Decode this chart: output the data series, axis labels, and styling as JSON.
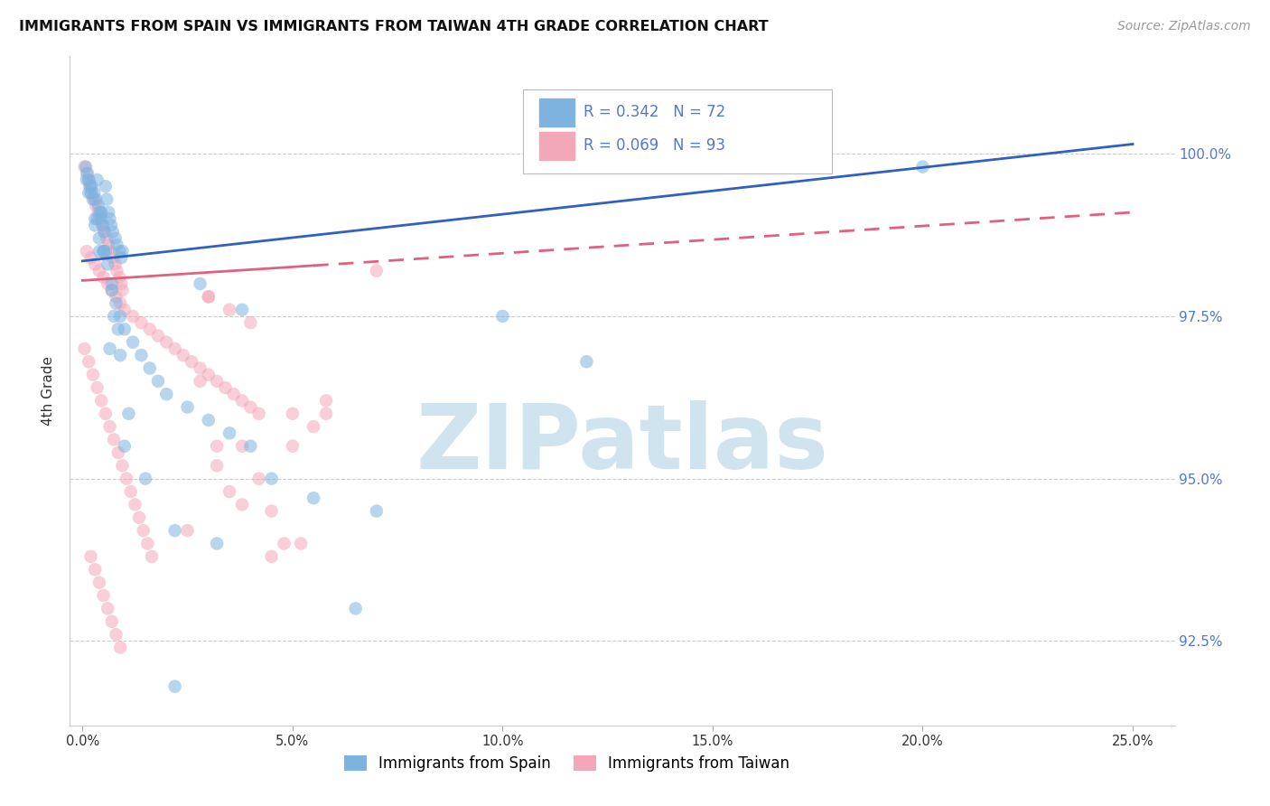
{
  "title": "IMMIGRANTS FROM SPAIN VS IMMIGRANTS FROM TAIWAN 4TH GRADE CORRELATION CHART",
  "source": "Source: ZipAtlas.com",
  "ylabel": "4th Grade",
  "y_ticks": [
    92.5,
    95.0,
    97.5,
    100.0
  ],
  "y_tick_labels": [
    "92.5%",
    "95.0%",
    "97.5%",
    "100.0%"
  ],
  "x_tick_vals": [
    0.0,
    5.0,
    10.0,
    15.0,
    20.0,
    25.0
  ],
  "x_tick_labels": [
    "0.0%",
    "5.0%",
    "10.0%",
    "15.0%",
    "20.0%",
    "25.0%"
  ],
  "xlim": [
    -0.3,
    26.0
  ],
  "ylim": [
    91.2,
    101.5
  ],
  "legend_blue_label": "R = 0.342   N = 72",
  "legend_pink_label": "R = 0.069   N = 93",
  "legend_bottom_blue": "Immigrants from Spain",
  "legend_bottom_pink": "Immigrants from Taiwan",
  "blue_color": "#7EB3E0",
  "pink_color": "#F4A7B9",
  "trend_blue_color": "#3060C0",
  "trend_pink_color": "#E06080",
  "blue_scatter_x": [
    0.08,
    0.12,
    0.15,
    0.18,
    0.22,
    0.28,
    0.32,
    0.35,
    0.38,
    0.42,
    0.45,
    0.48,
    0.52,
    0.55,
    0.58,
    0.62,
    0.65,
    0.68,
    0.72,
    0.78,
    0.82,
    0.88,
    0.92,
    0.95,
    0.1,
    0.2,
    0.3,
    0.4,
    0.5,
    0.6,
    0.7,
    0.8,
    0.9,
    1.0,
    1.2,
    1.4,
    1.6,
    1.8,
    2.0,
    2.5,
    3.0,
    3.5,
    4.0,
    4.5,
    5.5,
    7.0,
    10.0,
    12.0,
    15.0,
    20.0,
    0.15,
    0.25,
    0.35,
    0.45,
    0.55,
    0.65,
    0.75,
    0.85,
    1.0,
    1.5,
    2.2,
    3.2,
    0.3,
    0.5,
    0.7,
    0.9,
    1.1,
    2.8,
    6.5,
    2.2,
    3.8,
    0.4
  ],
  "blue_scatter_y": [
    99.8,
    99.7,
    99.6,
    99.5,
    99.5,
    99.4,
    99.3,
    99.6,
    99.2,
    99.1,
    99.0,
    98.9,
    98.8,
    99.5,
    99.3,
    99.1,
    99.0,
    98.9,
    98.8,
    98.7,
    98.6,
    98.5,
    98.4,
    98.5,
    99.6,
    99.4,
    98.9,
    98.7,
    98.5,
    98.3,
    97.9,
    97.7,
    97.5,
    97.3,
    97.1,
    96.9,
    96.7,
    96.5,
    96.3,
    96.1,
    95.9,
    95.7,
    95.5,
    95.0,
    94.7,
    94.5,
    97.5,
    96.8,
    99.9,
    99.8,
    99.4,
    99.3,
    99.0,
    99.1,
    98.5,
    97.0,
    97.5,
    97.3,
    95.5,
    95.0,
    94.2,
    94.0,
    99.0,
    98.5,
    98.0,
    96.9,
    96.0,
    98.0,
    93.0,
    91.8,
    97.6,
    98.5
  ],
  "pink_scatter_x": [
    0.05,
    0.1,
    0.15,
    0.18,
    0.22,
    0.28,
    0.32,
    0.38,
    0.42,
    0.48,
    0.52,
    0.58,
    0.62,
    0.68,
    0.72,
    0.78,
    0.82,
    0.88,
    0.92,
    0.95,
    0.1,
    0.2,
    0.3,
    0.4,
    0.5,
    0.6,
    0.7,
    0.8,
    0.9,
    1.0,
    1.2,
    1.4,
    1.6,
    1.8,
    2.0,
    2.2,
    2.4,
    2.6,
    2.8,
    3.0,
    3.2,
    3.4,
    3.6,
    3.8,
    4.0,
    4.2,
    0.05,
    0.15,
    0.25,
    0.35,
    0.45,
    0.55,
    0.65,
    0.75,
    0.85,
    0.95,
    1.05,
    1.15,
    1.25,
    1.35,
    1.45,
    1.55,
    1.65,
    0.2,
    0.3,
    0.4,
    0.5,
    0.6,
    0.7,
    0.8,
    0.9,
    3.0,
    3.5,
    4.0,
    5.0,
    5.0,
    5.5,
    5.8,
    3.2,
    3.5,
    3.8,
    2.5,
    4.5,
    7.0,
    3.0,
    5.8,
    3.2,
    4.2,
    4.5,
    4.8,
    2.8,
    3.8,
    5.2
  ],
  "pink_scatter_y": [
    99.8,
    99.7,
    99.6,
    99.5,
    99.4,
    99.3,
    99.2,
    99.1,
    99.0,
    98.9,
    98.8,
    98.7,
    98.6,
    98.5,
    98.4,
    98.3,
    98.2,
    98.1,
    98.0,
    97.9,
    98.5,
    98.4,
    98.3,
    98.2,
    98.1,
    98.0,
    97.9,
    97.8,
    97.7,
    97.6,
    97.5,
    97.4,
    97.3,
    97.2,
    97.1,
    97.0,
    96.9,
    96.8,
    96.7,
    96.6,
    96.5,
    96.4,
    96.3,
    96.2,
    96.1,
    96.0,
    97.0,
    96.8,
    96.6,
    96.4,
    96.2,
    96.0,
    95.8,
    95.6,
    95.4,
    95.2,
    95.0,
    94.8,
    94.6,
    94.4,
    94.2,
    94.0,
    93.8,
    93.8,
    93.6,
    93.4,
    93.2,
    93.0,
    92.8,
    92.6,
    92.4,
    97.8,
    97.6,
    97.4,
    95.5,
    96.0,
    95.8,
    96.2,
    95.2,
    94.8,
    94.6,
    94.2,
    93.8,
    98.2,
    97.8,
    96.0,
    95.5,
    95.0,
    94.5,
    94.0,
    96.5,
    95.5,
    94.0
  ],
  "blue_trend_x0": 0.0,
  "blue_trend_y0": 98.35,
  "blue_trend_x1": 25.0,
  "blue_trend_y1": 100.15,
  "pink_solid_x0": 0.0,
  "pink_solid_y0": 98.05,
  "pink_solid_x1": 5.5,
  "pink_solid_y1": 98.28,
  "pink_dashed_x0": 5.5,
  "pink_dashed_y0": 98.28,
  "pink_dashed_x1": 25.0,
  "pink_dashed_y1": 99.1,
  "background_color": "#ffffff",
  "watermark_text": "ZIPatlas",
  "watermark_color": "#D0E4F0",
  "grid_color": "#CCCCCC",
  "right_axis_color": "#5577CC",
  "title_color": "#111111",
  "source_color": "#999999"
}
